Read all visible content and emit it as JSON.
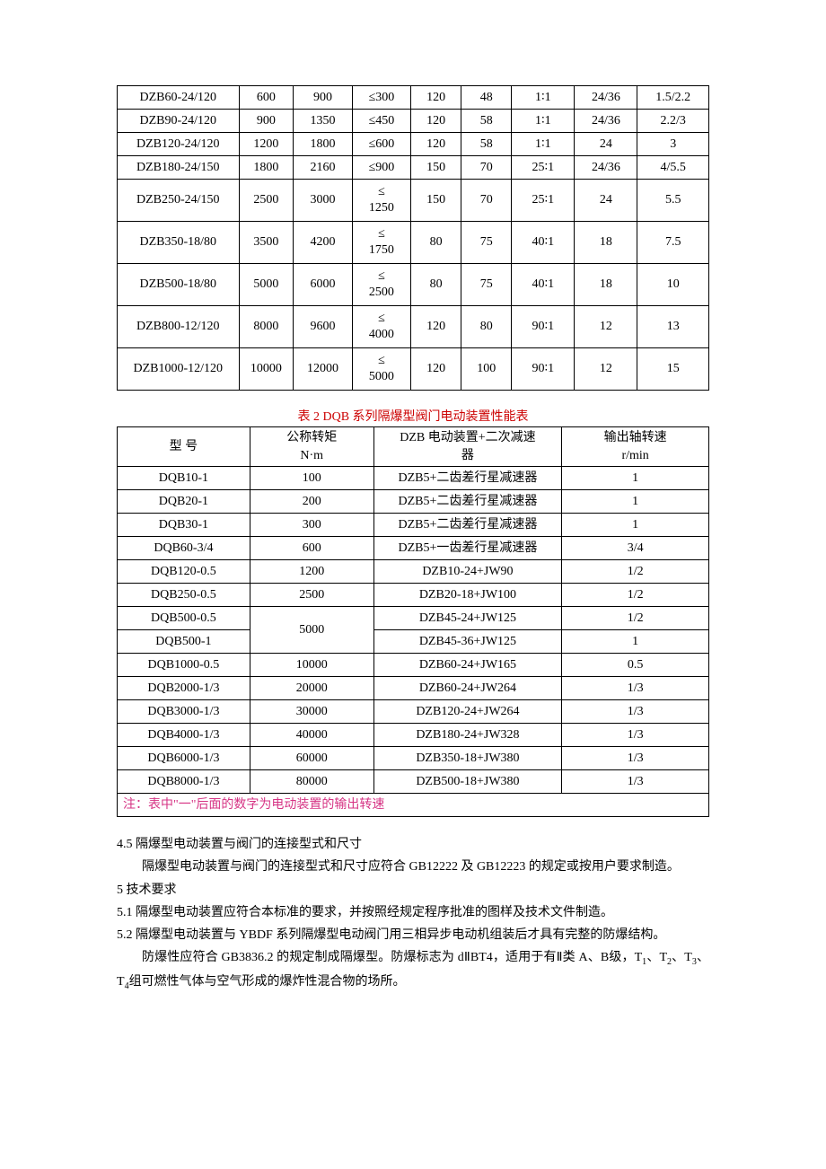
{
  "table1": {
    "col_widths": [
      "116",
      "52",
      "56",
      "56",
      "48",
      "48",
      "60",
      "60",
      "68"
    ],
    "rows": [
      {
        "c": [
          "DZB60-24/120",
          "600",
          "900",
          "≤300",
          "120",
          "48",
          "1∶1",
          "24/36",
          "1.5/2.2"
        ]
      },
      {
        "c": [
          "DZB90-24/120",
          "900",
          "1350",
          "≤450",
          "120",
          "58",
          "1∶1",
          "24/36",
          "2.2/3"
        ]
      },
      {
        "c": [
          "DZB120-24/120",
          "1200",
          "1800",
          "≤600",
          "120",
          "58",
          "1∶1",
          "24",
          "3"
        ]
      },
      {
        "c": [
          "DZB180-24/150",
          "1800",
          "2160",
          "≤900",
          "150",
          "70",
          "25∶1",
          "24/36",
          "4/5.5"
        ]
      },
      {
        "c": [
          "DZB250-24/150",
          "2500",
          "3000",
          "≤\n1250",
          "150",
          "70",
          "25∶1",
          "24",
          "5.5"
        ],
        "multi": true
      },
      {
        "c": [
          "DZB350-18/80",
          "3500",
          "4200",
          "≤\n1750",
          "80",
          "75",
          "40∶1",
          "18",
          "7.5"
        ],
        "multi": true
      },
      {
        "c": [
          "DZB500-18/80",
          "5000",
          "6000",
          "≤\n2500",
          "80",
          "75",
          "40∶1",
          "18",
          "10"
        ],
        "multi": true
      },
      {
        "c": [
          "DZB800-12/120",
          "8000",
          "9600",
          "≤\n4000",
          "120",
          "80",
          "90∶1",
          "12",
          "13"
        ],
        "multi": true
      },
      {
        "c": [
          "DZB1000-12/120",
          "10000",
          "12000",
          "≤\n5000",
          "120",
          "100",
          "90∶1",
          "12",
          "15"
        ],
        "multi": true
      }
    ]
  },
  "caption2": "表 2    DQB 系列隔爆型阀门电动装置性能表",
  "table2": {
    "headers": {
      "h1": "型        号",
      "h2": "公称转矩\nN·m",
      "h3": "DZB 电动装置+二次减速\n器",
      "h4": "输出轴转速\nr/min"
    },
    "col_widths": [
      "148",
      "138",
      "210",
      "164"
    ],
    "rows": [
      {
        "c": [
          "DQB10-1",
          "100",
          "DZB5+二齿差行星减速器",
          "1"
        ]
      },
      {
        "c": [
          "DQB20-1",
          "200",
          "DZB5+二齿差行星减速器",
          "1"
        ]
      },
      {
        "c": [
          "DQB30-1",
          "300",
          "DZB5+二齿差行星减速器",
          "1"
        ]
      },
      {
        "c": [
          "DQB60-3/4",
          "600",
          "DZB5+一齿差行星减速器",
          "3/4"
        ]
      },
      {
        "c": [
          "DQB120-0.5",
          "1200",
          "DZB10-24+JW90",
          "1/2"
        ]
      },
      {
        "c": [
          "DQB250-0.5",
          "2500",
          "DZB20-18+JW100",
          "1/2"
        ]
      },
      {
        "c": [
          "DQB500-0.5",
          {
            "rowspan": 2,
            "v": "5000"
          },
          "DZB45-24+JW125",
          "1/2"
        ]
      },
      {
        "c": [
          "DQB500-1",
          "DZB45-36+JW125",
          "1"
        ]
      },
      {
        "c": [
          "DQB1000-0.5",
          "10000",
          "DZB60-24+JW165",
          "0.5"
        ]
      },
      {
        "c": [
          "DQB2000-1/3",
          "20000",
          "DZB60-24+JW264",
          "1/3"
        ]
      },
      {
        "c": [
          "DQB3000-1/3",
          "30000",
          "DZB120-24+JW264",
          "1/3"
        ]
      },
      {
        "c": [
          "DQB4000-1/3",
          "40000",
          "DZB180-24+JW328",
          "1/3"
        ]
      },
      {
        "c": [
          "DQB6000-1/3",
          "60000",
          "DZB350-18+JW380",
          "1/3"
        ]
      },
      {
        "c": [
          "DQB8000-1/3",
          "80000",
          "DZB500-18+JW380",
          "1/3"
        ]
      }
    ],
    "note": "注：表中\"一\"后面的数字为电动装置的输出转速"
  },
  "paras": {
    "p1": "4.5    隔爆型电动装置与阀门的连接型式和尺寸",
    "p2": "隔爆型电动装置与阀门的连接型式和尺寸应符合 GB12222 及 GB12223 的规定或按用户要求制造。",
    "p3": "5    技术要求",
    "p4": "5.1    隔爆型电动装置应符合本标准的要求，并按照经规定程序批准的图样及技术文件制造。",
    "p5": "5.2    隔爆型电动装置与 YBDF 系列隔爆型电动阀门用三相异步电动机组装后才具有完整的防爆结构。",
    "p6a": "防爆性应符合 GB3836.2 的规定制成隔爆型。防爆标志为 dⅡBT4，适用于有Ⅱ类 A、B级，T",
    "p6b": "、T",
    "p6c": "、T",
    "p6d": "、T",
    "p6e": "组可燃性气体与空气形成的爆炸性混合物的场所。",
    "sub1": "1",
    "sub2": "2",
    "sub3": "3",
    "sub4": "4"
  }
}
